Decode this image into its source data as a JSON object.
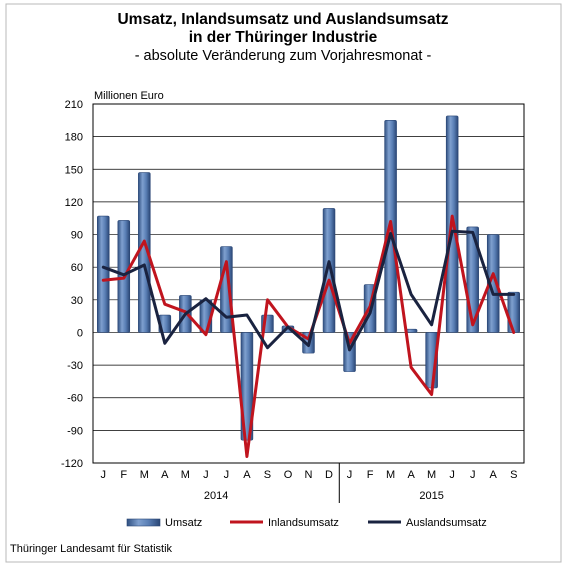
{
  "chart_data": {
    "type": "bar",
    "title": "Umsatz, Inlandsumsatz und Auslandsumsatz",
    "title_line2": "in der Thüringer Industrie",
    "subtitle": "- absolute Veränderung zum Vorjahresmonat -",
    "ylabel": "Millionen Euro",
    "xlabel": "",
    "ylim": [
      -120,
      210
    ],
    "yticks": [
      210,
      180,
      150,
      120,
      90,
      60,
      30,
      0,
      -30,
      -60,
      -90,
      -120
    ],
    "yticks_labels": [
      "210",
      "180",
      "150",
      "120",
      "90",
      "60",
      "30",
      "0",
      "-30",
      "-60",
      "-90",
      "-120"
    ],
    "grid": true,
    "legend_position": "bottom",
    "categories": [
      "J",
      "F",
      "M",
      "A",
      "M",
      "J",
      "J",
      "A",
      "S",
      "O",
      "N",
      "D",
      "J",
      "F",
      "M",
      "A",
      "M",
      "J",
      "J",
      "A",
      "S"
    ],
    "years": [
      {
        "label": "2014",
        "start": 0,
        "end": 11
      },
      {
        "label": "2015",
        "start": 12,
        "end": 20
      }
    ],
    "series": [
      {
        "name": "Umsatz",
        "kind": "bar",
        "color": "#4a6fa5",
        "values": [
          107,
          103,
          147,
          16,
          34,
          30,
          79,
          -99,
          16,
          6,
          -19,
          114,
          -36,
          44,
          195,
          3,
          -51,
          199,
          97,
          90,
          37
        ]
      },
      {
        "name": "Inlandsumsatz",
        "kind": "line",
        "color": "#c0141e",
        "values": [
          48,
          50,
          84,
          26,
          19,
          -2,
          65,
          -114,
          30,
          5,
          -6,
          48,
          -10,
          24,
          102,
          -32,
          -57,
          107,
          7,
          54,
          0
        ]
      },
      {
        "name": "Auslandsumsatz",
        "kind": "line",
        "color": "#1a2340",
        "values": [
          60,
          53,
          62,
          -10,
          17,
          31,
          14,
          16,
          -14,
          5,
          -12,
          65,
          -16,
          18,
          91,
          35,
          7,
          93,
          92,
          35,
          35
        ]
      }
    ],
    "source": "Thüringer Landesamt für Statistik"
  }
}
